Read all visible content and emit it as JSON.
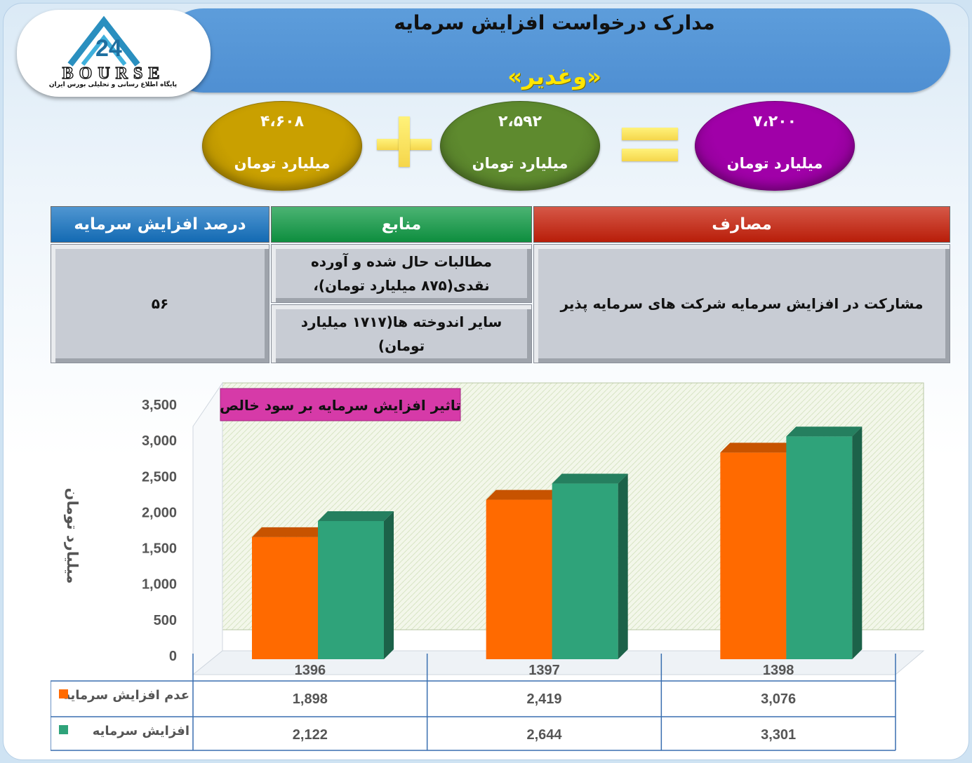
{
  "header": {
    "title": "مدارک درخواست افزایش سرمایه",
    "company": "«وغدیر»"
  },
  "logo": {
    "word": "BOURSE",
    "tagline": "پایگاه اطلاع رسانی و تحلیلی بورس ایران"
  },
  "equation": {
    "left_oval": {
      "value": "۴،۶۰۸",
      "unit": "میلیارد تومان",
      "color": "#c9a000"
    },
    "middle_oval": {
      "value": "۲،۵۹۲",
      "unit": "میلیارد تومان",
      "color": "#5e8a2e"
    },
    "right_oval": {
      "value": "۷،۲۰۰",
      "unit": "میلیارد تومان",
      "color": "#a000a8"
    }
  },
  "table": {
    "col_expenses": "مصارف",
    "col_sources": "منابع",
    "col_percent": "درصد افزایش سرمایه",
    "expenses_text": "مشارکت در افزایش سرمایه شرکت های سرمایه پذیر",
    "source_1": "مطالبات حال شده و آورده نقدی(۸۷۵ میلیارد تومان)،",
    "source_2": "سایر اندوخته ها(۱۷۱۷ میلیارد تومان)",
    "percent": "۵۶",
    "colors": {
      "expenses": "#c8200a",
      "sources": "#0f9a44",
      "percent": "#1573c2"
    }
  },
  "chart_data": {
    "type": "bar",
    "title": "تاثیر افزایش سرمایه بر سود خالص",
    "ylabel": "میلیارد تومان",
    "xlabel": "",
    "categories": [
      "1396",
      "1397",
      "1398"
    ],
    "ylim": [
      0,
      3500
    ],
    "yticks": [
      "0",
      "500",
      "1,000",
      "1,500",
      "2,000",
      "2,500",
      "3,000",
      "3,500"
    ],
    "grid": false,
    "legend": "data-table",
    "series": [
      {
        "name": "عدم افزایش سرمایه",
        "values": [
          1898,
          2419,
          3076
        ],
        "labels": [
          "1,898",
          "2,419",
          "3,076"
        ],
        "color": "#ff6a00"
      },
      {
        "name": "افزایش سرمایه",
        "values": [
          2122,
          2644,
          3301
        ],
        "labels": [
          "2,122",
          "2,644",
          "3,301"
        ],
        "color": "#2fa37a"
      }
    ],
    "title_color": "#d63aa8"
  }
}
